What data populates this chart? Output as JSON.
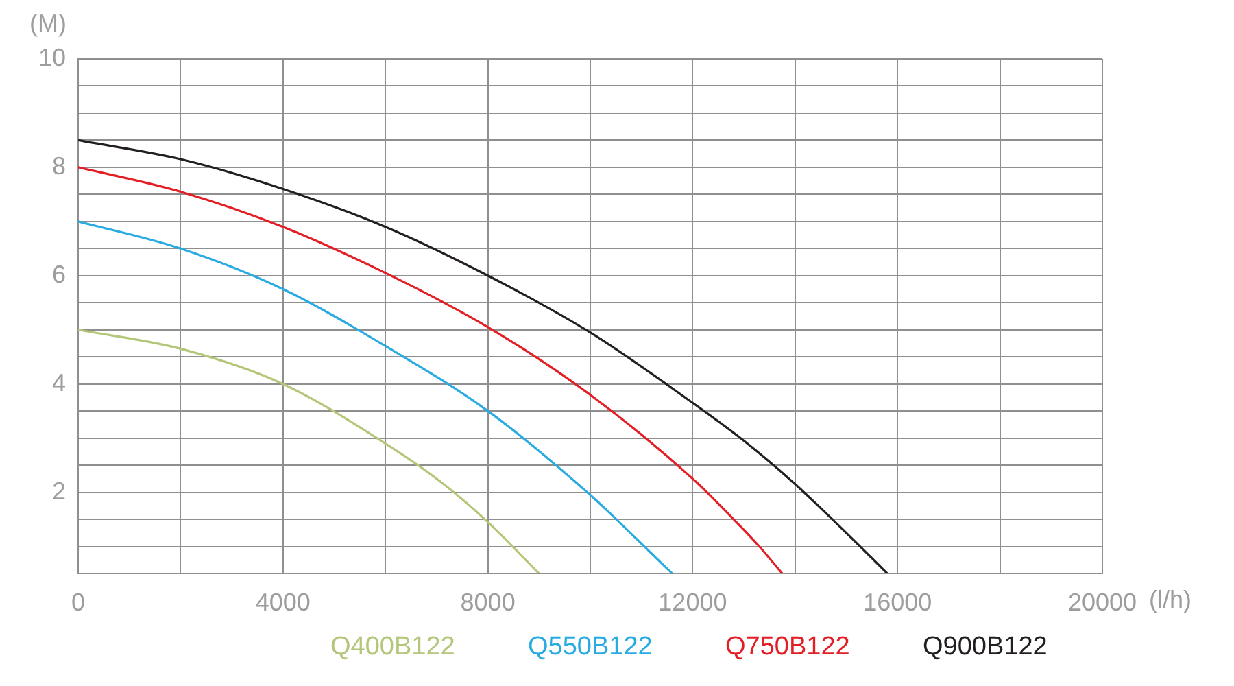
{
  "chart_data": {
    "type": "line",
    "xlabel": "(l/h)",
    "ylabel": "(M)",
    "xlim": [
      0,
      20000
    ],
    "xticks": [
      0,
      {
        "value": 2000,
        "label": null
      },
      4000,
      {
        "value": 6000,
        "label": null
      },
      8000,
      {
        "value": 10000,
        "label": null
      },
      12000,
      {
        "value": 14000,
        "label": null
      },
      16000,
      {
        "value": 18000,
        "label": null
      },
      20000
    ],
    "ylim": [
      0.5,
      10
    ],
    "yticks": [
      {
        "value": 0.5,
        "label": null
      },
      {
        "value": 1,
        "label": null
      },
      {
        "value": 1.5,
        "label": null
      },
      2,
      {
        "value": 2.5,
        "label": null
      },
      {
        "value": 3,
        "label": null
      },
      {
        "value": 3.5,
        "label": null
      },
      4,
      {
        "value": 4.5,
        "label": null
      },
      {
        "value": 5,
        "label": null
      },
      {
        "value": 5.5,
        "label": null
      },
      6,
      {
        "value": 6.5,
        "label": null
      },
      {
        "value": 7,
        "label": null
      },
      {
        "value": 7.5,
        "label": null
      },
      8,
      {
        "value": 8.5,
        "label": null
      },
      {
        "value": 9,
        "label": null
      },
      {
        "value": 9.5,
        "label": null
      },
      10
    ],
    "grid": true,
    "legend": "bottom",
    "series": [
      {
        "name": "Q400B122",
        "color": "#b3c679",
        "x": [
          0,
          2000,
          4000,
          6000,
          7000,
          8000,
          9000
        ],
        "values": [
          5.0,
          4.65,
          4.0,
          2.9,
          2.25,
          1.45,
          0.5
        ]
      },
      {
        "name": "Q550B122",
        "color": "#29abe2",
        "x": [
          0,
          2000,
          4000,
          6000,
          8000,
          10000,
          11000,
          11600
        ],
        "values": [
          7.0,
          6.5,
          5.75,
          4.7,
          3.5,
          1.95,
          1.05,
          0.5
        ]
      },
      {
        "name": "Q750B122",
        "color": "#e31e24",
        "x": [
          0,
          2000,
          4000,
          6000,
          8000,
          10000,
          12000,
          12800,
          13300,
          13750
        ],
        "values": [
          8.0,
          7.55,
          6.9,
          6.05,
          5.05,
          3.8,
          2.25,
          1.5,
          1.0,
          0.5
        ]
      },
      {
        "name": "Q900B122",
        "color": "#231f20",
        "x": [
          0,
          2000,
          4000,
          6000,
          8000,
          10000,
          12000,
          13000,
          14000,
          15000,
          15800
        ],
        "values": [
          8.5,
          8.15,
          7.6,
          6.9,
          6.0,
          4.95,
          3.65,
          2.95,
          2.15,
          1.25,
          0.5
        ]
      }
    ]
  }
}
